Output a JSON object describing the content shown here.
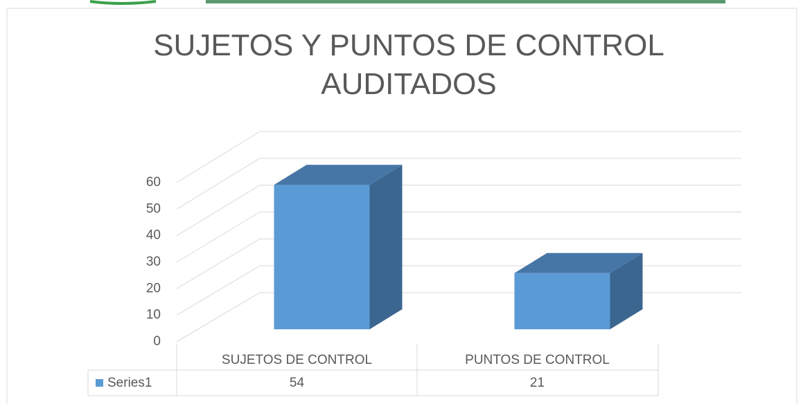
{
  "chart_data": {
    "type": "bar3d",
    "title": "SUJETOS Y PUNTOS DE CONTROL AUDITADOS",
    "categories": [
      "SUJETOS DE CONTROL",
      "PUNTOS DE CONTROL"
    ],
    "series": [
      {
        "name": "Series1",
        "color": "#5b9bd5",
        "values": [
          54,
          21
        ]
      }
    ],
    "ylim": [
      0,
      60
    ],
    "yticks": [
      0,
      10,
      20,
      30,
      40,
      50,
      60
    ],
    "grid": true,
    "data_table": true
  }
}
